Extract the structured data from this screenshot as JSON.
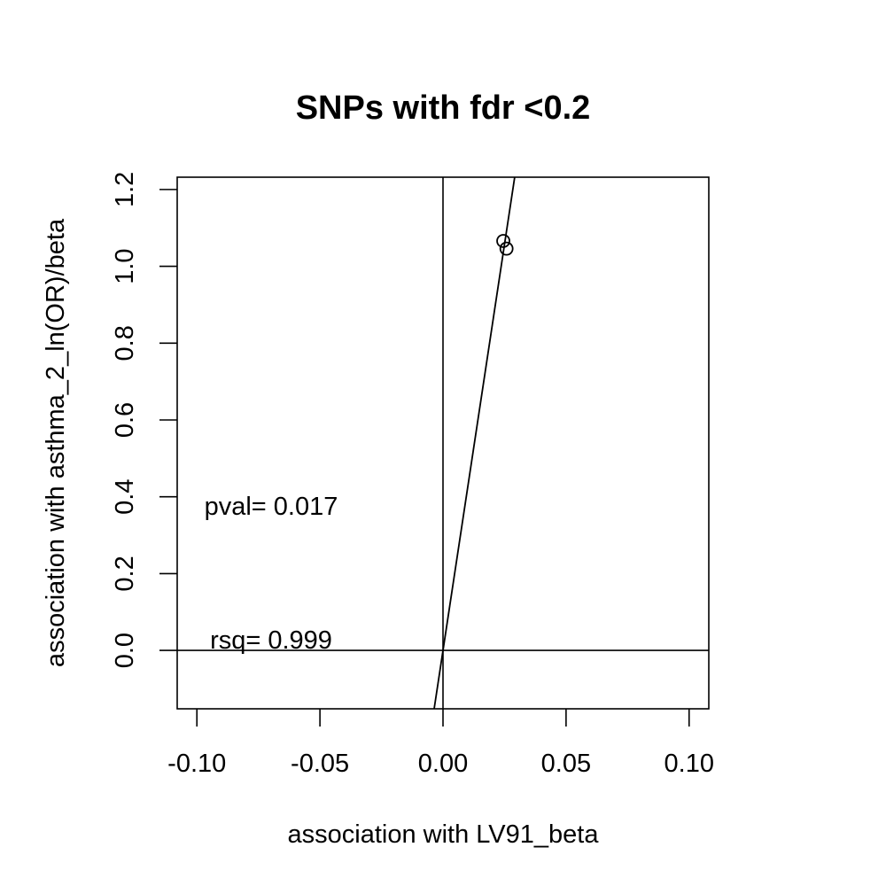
{
  "chart_data": {
    "type": "scatter",
    "title": "SNPs with fdr <0.2",
    "xlabel": "association with LV91_beta",
    "ylabel": "association with asthma_2_ln(OR)/beta",
    "xlim": [
      -0.108,
      0.108
    ],
    "ylim": [
      -0.152,
      1.232
    ],
    "x_ticks": [
      -0.1,
      -0.05,
      0.0,
      0.05,
      0.1
    ],
    "x_tick_labels": [
      "-0.10",
      "-0.05",
      "0.00",
      "0.05",
      "0.10"
    ],
    "y_ticks": [
      0.0,
      0.2,
      0.4,
      0.6,
      0.8,
      1.0,
      1.2
    ],
    "y_tick_labels": [
      "0.0",
      "0.2",
      "0.4",
      "0.6",
      "0.8",
      "1.0",
      "1.2"
    ],
    "points": [
      {
        "x": 0.0245,
        "y": 1.066
      },
      {
        "x": 0.0258,
        "y": 1.046
      }
    ],
    "fit_line": {
      "intercept": 0.0,
      "slope": 42.3
    },
    "reference_lines": {
      "h": 0,
      "v": 0
    },
    "grid": false,
    "annotations": [
      {
        "id": "pval",
        "text": "pval= 0.017"
      },
      {
        "id": "rsq",
        "text": "rsq= 0.999"
      }
    ]
  }
}
